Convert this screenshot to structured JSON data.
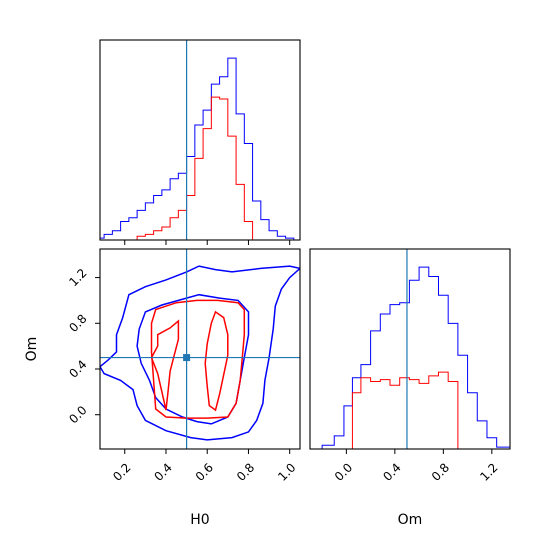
{
  "chart_data": {
    "type": "corner",
    "parameters": [
      "H0",
      "Om"
    ],
    "truths": {
      "H0": 0.5,
      "Om": 0.5
    },
    "colors": {
      "series_a": "#0000ff",
      "series_b": "#ff0000",
      "truth": "#1f77b4"
    },
    "panels": [
      {
        "id": "hist-H0",
        "type": "step-histogram",
        "xlim": [
          0.08,
          1.05
        ],
        "xticks": [
          0.2,
          0.4,
          0.6,
          0.8,
          1.0
        ],
        "show_tick_labels": false,
        "bin_edges": [
          0.08,
          0.1,
          0.14,
          0.18,
          0.22,
          0.26,
          0.3,
          0.34,
          0.38,
          0.42,
          0.46,
          0.5,
          0.54,
          0.58,
          0.62,
          0.66,
          0.7,
          0.74,
          0.78,
          0.82,
          0.86,
          0.9,
          0.94,
          0.98,
          1.02,
          1.05
        ],
        "series": [
          {
            "color_key": "series_a",
            "values": [
              0.01,
              0.03,
              0.05,
              0.1,
              0.12,
              0.16,
              0.2,
              0.24,
              0.27,
              0.33,
              0.36,
              0.45,
              0.62,
              0.7,
              0.84,
              0.88,
              0.98,
              0.68,
              0.52,
              0.21,
              0.11,
              0.05,
              0.02,
              0.01,
              0.0
            ]
          },
          {
            "color_key": "series_b",
            "values": [
              0.0,
              0.0,
              0.0,
              0.0,
              0.0,
              0.02,
              0.03,
              0.05,
              0.07,
              0.12,
              0.16,
              0.24,
              0.44,
              0.6,
              0.77,
              0.76,
              0.56,
              0.3,
              0.1,
              0.0,
              0.0,
              0.0,
              0.0,
              0.0,
              0.0
            ]
          }
        ]
      },
      {
        "id": "contour-H0-Om",
        "type": "contour",
        "xlabel": "H0",
        "ylabel": "Om",
        "xlim": [
          0.08,
          1.05
        ],
        "ylim": [
          -0.3,
          1.45
        ],
        "xticks": [
          0.2,
          0.4,
          0.6,
          0.8,
          1.0
        ],
        "yticks": [
          0.0,
          0.4,
          0.8,
          1.2
        ],
        "xtick_labels": [
          "0.2",
          "0.4",
          "0.6",
          "0.8",
          "1.0"
        ],
        "ytick_labels": [
          "0.0",
          "0.4",
          "0.8",
          "1.2"
        ],
        "series": [
          {
            "color_key": "series_a",
            "contours": [
              [
                [
                  0.22,
                  1.05
                ],
                [
                  0.3,
                  1.12
                ],
                [
                  0.4,
                  1.18
                ],
                [
                  0.5,
                  1.25
                ],
                [
                  0.56,
                  1.3
                ],
                [
                  0.64,
                  1.27
                ],
                [
                  0.72,
                  1.25
                ],
                [
                  0.86,
                  1.28
                ],
                [
                  1.0,
                  1.3
                ],
                [
                  1.05,
                  1.28
                ],
                [
                  1.0,
                  1.2
                ],
                [
                  0.96,
                  1.1
                ],
                [
                  0.93,
                  0.95
                ],
                [
                  0.92,
                  0.75
                ],
                [
                  0.9,
                  0.5
                ],
                [
                  0.88,
                  0.3
                ],
                [
                  0.87,
                  0.1
                ],
                [
                  0.84,
                  -0.05
                ],
                [
                  0.8,
                  -0.15
                ],
                [
                  0.72,
                  -0.2
                ],
                [
                  0.6,
                  -0.22
                ],
                [
                  0.52,
                  -0.2
                ],
                [
                  0.4,
                  -0.14
                ],
                [
                  0.3,
                  -0.05
                ],
                [
                  0.26,
                  0.08
                ],
                [
                  0.24,
                  0.22
                ],
                [
                  0.18,
                  0.3
                ],
                [
                  0.1,
                  0.36
                ],
                [
                  0.08,
                  0.42
                ],
                [
                  0.12,
                  0.48
                ],
                [
                  0.16,
                  0.55
                ],
                [
                  0.16,
                  0.7
                ],
                [
                  0.19,
                  0.85
                ],
                [
                  0.22,
                  1.05
                ]
              ],
              [
                [
                  0.3,
                  0.9
                ],
                [
                  0.38,
                  0.96
                ],
                [
                  0.46,
                  1.0
                ],
                [
                  0.56,
                  1.05
                ],
                [
                  0.66,
                  1.02
                ],
                [
                  0.75,
                  1.0
                ],
                [
                  0.8,
                  0.9
                ],
                [
                  0.8,
                  0.7
                ],
                [
                  0.78,
                  0.5
                ],
                [
                  0.76,
                  0.3
                ],
                [
                  0.74,
                  0.1
                ],
                [
                  0.7,
                  -0.02
                ],
                [
                  0.62,
                  -0.08
                ],
                [
                  0.55,
                  -0.06
                ],
                [
                  0.48,
                  -0.02
                ],
                [
                  0.4,
                  0.05
                ],
                [
                  0.35,
                  0.15
                ],
                [
                  0.32,
                  0.3
                ],
                [
                  0.28,
                  0.45
                ],
                [
                  0.26,
                  0.6
                ],
                [
                  0.27,
                  0.75
                ],
                [
                  0.3,
                  0.9
                ]
              ]
            ]
          },
          {
            "color_key": "series_b",
            "contours": [
              [
                [
                  0.35,
                  0.92
                ],
                [
                  0.45,
                  0.98
                ],
                [
                  0.55,
                  1.0
                ],
                [
                  0.65,
                  1.0
                ],
                [
                  0.75,
                  0.98
                ],
                [
                  0.78,
                  0.92
                ],
                [
                  0.78,
                  0.7
                ],
                [
                  0.77,
                  0.5
                ],
                [
                  0.76,
                  0.3
                ],
                [
                  0.74,
                  0.1
                ],
                [
                  0.7,
                  -0.02
                ],
                [
                  0.6,
                  -0.03
                ],
                [
                  0.5,
                  -0.03
                ],
                [
                  0.4,
                  -0.02
                ],
                [
                  0.35,
                  0.05
                ],
                [
                  0.34,
                  0.3
                ],
                [
                  0.33,
                  0.55
                ],
                [
                  0.33,
                  0.8
                ],
                [
                  0.35,
                  0.92
                ]
              ],
              [
                [
                  0.36,
                  0.7
                ],
                [
                  0.42,
                  0.76
                ],
                [
                  0.46,
                  0.82
                ],
                [
                  0.46,
                  0.66
                ],
                [
                  0.44,
                  0.52
                ],
                [
                  0.42,
                  0.38
                ],
                [
                  0.41,
                  0.2
                ],
                [
                  0.4,
                  0.04
                ],
                [
                  0.38,
                  0.2
                ],
                [
                  0.36,
                  0.36
                ],
                [
                  0.33,
                  0.5
                ],
                [
                  0.36,
                  0.6
                ],
                [
                  0.36,
                  0.7
                ]
              ],
              [
                [
                  0.62,
                  0.8
                ],
                [
                  0.64,
                  0.9
                ],
                [
                  0.68,
                  0.85
                ],
                [
                  0.7,
                  0.7
                ],
                [
                  0.7,
                  0.52
                ],
                [
                  0.68,
                  0.35
                ],
                [
                  0.66,
                  0.18
                ],
                [
                  0.64,
                  0.04
                ],
                [
                  0.61,
                  0.08
                ],
                [
                  0.6,
                  0.25
                ],
                [
                  0.59,
                  0.45
                ],
                [
                  0.6,
                  0.62
                ],
                [
                  0.62,
                  0.8
                ]
              ]
            ]
          }
        ]
      },
      {
        "id": "hist-Om",
        "type": "step-histogram",
        "xlabel": "Om",
        "xlim": [
          -0.3,
          1.35
        ],
        "xticks": [
          0.0,
          0.4,
          0.8,
          1.2
        ],
        "xtick_labels": [
          "0.0",
          "0.4",
          "0.8",
          "1.2"
        ],
        "bin_edges": [
          -0.3,
          -0.2,
          -0.1,
          -0.02,
          0.05,
          0.12,
          0.2,
          0.28,
          0.36,
          0.44,
          0.52,
          0.6,
          0.68,
          0.76,
          0.84,
          0.92,
          1.0,
          1.08,
          1.16,
          1.24,
          1.35
        ],
        "series": [
          {
            "color_key": "series_a",
            "values": [
              0.0,
              0.02,
              0.07,
              0.23,
              0.38,
              0.45,
              0.63,
              0.72,
              0.77,
              0.78,
              0.9,
              0.97,
              0.92,
              0.82,
              0.67,
              0.5,
              0.3,
              0.15,
              0.06,
              0.01
            ]
          },
          {
            "color_key": "series_b",
            "values": [
              0.0,
              0.0,
              0.0,
              0.0,
              0.3,
              0.38,
              0.36,
              0.37,
              0.34,
              0.38,
              0.37,
              0.35,
              0.39,
              0.41,
              0.36,
              0.0,
              0.0,
              0.0,
              0.0,
              0.0
            ]
          }
        ]
      }
    ]
  }
}
